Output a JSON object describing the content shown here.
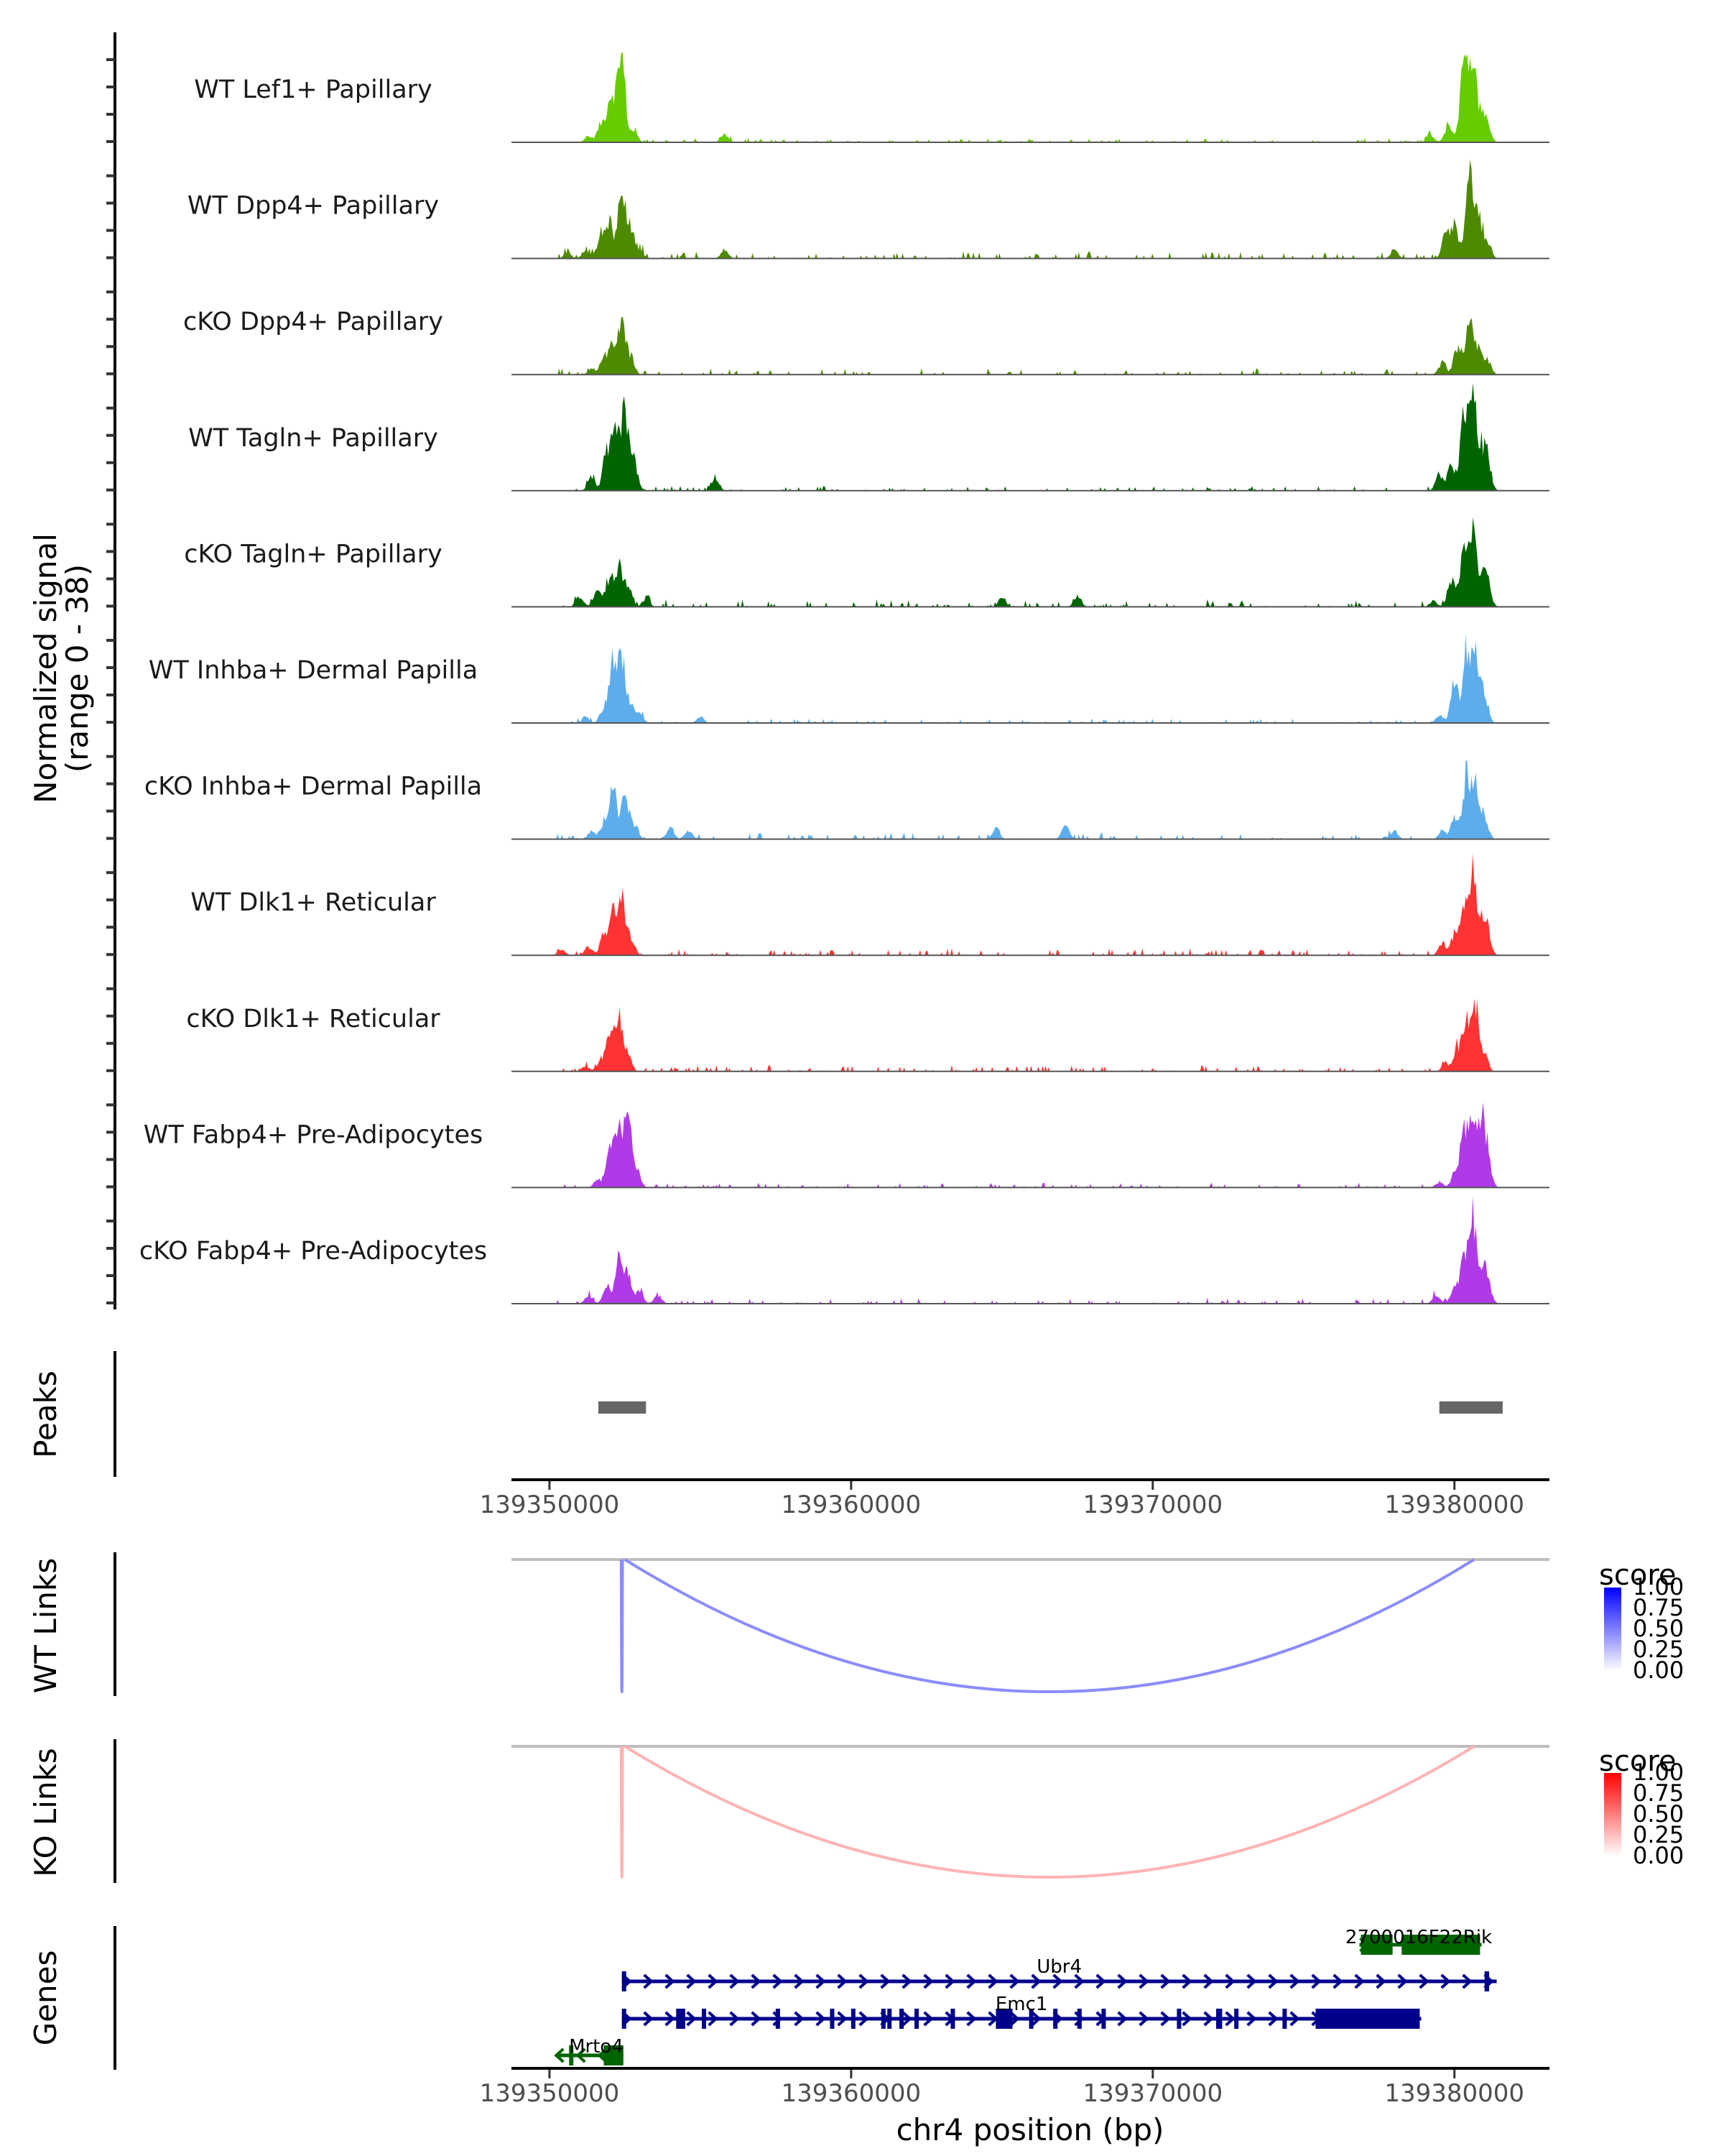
{
  "chart_data": {
    "type": "area",
    "title": "",
    "region": {
      "chrom": "chr4",
      "start": 139348740,
      "end": 139383150
    },
    "xlabel": "chr4 position (bp)",
    "x_ticks": [
      139350000,
      139360000,
      139370000,
      139380000
    ],
    "x_tick_labels": [
      "139350000",
      "139360000",
      "139370000",
      "139380000"
    ],
    "coverage": {
      "ylabel_line1": "Normalized signal",
      "ylabel_line2": "(range 0 - 38)",
      "ylim": [
        0,
        38
      ],
      "tracks": [
        {
          "name": "WT Lef1+ Papillary",
          "color": "#66CC00",
          "peaks": [
            [
              139351300,
              2
            ],
            [
              139351700,
              6
            ],
            [
              139352000,
              14
            ],
            [
              139352200,
              9
            ],
            [
              139352400,
              28
            ],
            [
              139352800,
              4
            ],
            [
              139355800,
              3
            ],
            [
              139379200,
              3
            ],
            [
              139379800,
              6
            ],
            [
              139380300,
              24
            ],
            [
              139380600,
              32
            ],
            [
              139380900,
              8
            ],
            [
              139381100,
              5
            ]
          ],
          "noise": 0.6
        },
        {
          "name": "WT Dpp4+ Papillary",
          "color": "#4E8A00",
          "peaks": [
            [
              139350600,
              2
            ],
            [
              139351200,
              3
            ],
            [
              139351700,
              8
            ],
            [
              139352000,
              12
            ],
            [
              139352400,
              24
            ],
            [
              139352700,
              10
            ],
            [
              139353000,
              3
            ],
            [
              139355800,
              3
            ],
            [
              139378000,
              3
            ],
            [
              139379700,
              8
            ],
            [
              139380000,
              12
            ],
            [
              139380500,
              34
            ],
            [
              139380800,
              14
            ],
            [
              139381100,
              6
            ]
          ],
          "noise": 1.0
        },
        {
          "name": "cKO Dpp4+ Papillary",
          "color": "#4E8A00",
          "peaks": [
            [
              139351400,
              2
            ],
            [
              139351800,
              6
            ],
            [
              139352100,
              10
            ],
            [
              139352400,
              18
            ],
            [
              139352700,
              6
            ],
            [
              139379600,
              4
            ],
            [
              139380100,
              10
            ],
            [
              139380500,
              22
            ],
            [
              139380800,
              9
            ],
            [
              139381100,
              5
            ]
          ],
          "noise": 0.9
        },
        {
          "name": "WT Tagln+ Papillary",
          "color": "#006400",
          "peaks": [
            [
              139351400,
              5
            ],
            [
              139351900,
              14
            ],
            [
              139352200,
              22
            ],
            [
              139352500,
              26
            ],
            [
              139352800,
              11
            ],
            [
              139355500,
              5
            ],
            [
              139379500,
              6
            ],
            [
              139379900,
              9
            ],
            [
              139380300,
              24
            ],
            [
              139380600,
              38
            ],
            [
              139380900,
              12
            ],
            [
              139381100,
              10
            ]
          ],
          "noise": 0.7
        },
        {
          "name": "cKO Tagln+ Papillary",
          "color": "#006400",
          "peaks": [
            [
              139351000,
              4
            ],
            [
              139351600,
              7
            ],
            [
              139352000,
              10
            ],
            [
              139352300,
              14
            ],
            [
              139352600,
              8
            ],
            [
              139353200,
              3
            ],
            [
              139365000,
              3
            ],
            [
              139367500,
              4
            ],
            [
              139379300,
              2
            ],
            [
              139379900,
              10
            ],
            [
              139380300,
              18
            ],
            [
              139380600,
              26
            ],
            [
              139380900,
              10
            ],
            [
              139381100,
              8
            ]
          ],
          "noise": 1.1
        },
        {
          "name": "WT Inhba+ Dermal Papilla",
          "color": "#5DADEC",
          "peaks": [
            [
              139351200,
              2
            ],
            [
              139351800,
              5
            ],
            [
              139352100,
              20
            ],
            [
              139352400,
              24
            ],
            [
              139352700,
              6
            ],
            [
              139353000,
              3
            ],
            [
              139355000,
              2
            ],
            [
              139379500,
              3
            ],
            [
              139380000,
              14
            ],
            [
              139380400,
              25
            ],
            [
              139380700,
              22
            ],
            [
              139381000,
              10
            ]
          ],
          "noise": 0.6
        },
        {
          "name": "cKO Inhba+ Dermal Papilla",
          "color": "#5DADEC",
          "peaks": [
            [
              139351400,
              3
            ],
            [
              139351800,
              5
            ],
            [
              139352100,
              18
            ],
            [
              139352500,
              15
            ],
            [
              139352800,
              5
            ],
            [
              139354000,
              4
            ],
            [
              139354600,
              3
            ],
            [
              139364800,
              4
            ],
            [
              139367100,
              5
            ],
            [
              139378000,
              3
            ],
            [
              139379600,
              3
            ],
            [
              139380000,
              7
            ],
            [
              139380400,
              22
            ],
            [
              139380700,
              18
            ],
            [
              139381000,
              8
            ]
          ],
          "noise": 0.9
        },
        {
          "name": "WT Dlk1+ Reticular",
          "color": "#FF3333",
          "peaks": [
            [
              139350400,
              2
            ],
            [
              139351300,
              3
            ],
            [
              139351800,
              7
            ],
            [
              139352100,
              14
            ],
            [
              139352400,
              20
            ],
            [
              139352700,
              6
            ],
            [
              139379600,
              4
            ],
            [
              139380000,
              7
            ],
            [
              139380300,
              17
            ],
            [
              139380600,
              28
            ],
            [
              139380900,
              10
            ],
            [
              139381100,
              8
            ]
          ],
          "noise": 1.0
        },
        {
          "name": "cKO Dlk1+ Reticular",
          "color": "#FF3333",
          "peaks": [
            [
              139351200,
              2
            ],
            [
              139351700,
              4
            ],
            [
              139352000,
              12
            ],
            [
              139352300,
              18
            ],
            [
              139352600,
              6
            ],
            [
              139379700,
              3
            ],
            [
              139380100,
              8
            ],
            [
              139380400,
              16
            ],
            [
              139380700,
              22
            ],
            [
              139381000,
              6
            ]
          ],
          "noise": 0.9
        },
        {
          "name": "WT Fabp4+ Pre-Adipocytes",
          "color": "#B03AE8",
          "peaks": [
            [
              139351600,
              3
            ],
            [
              139352000,
              12
            ],
            [
              139352300,
              22
            ],
            [
              139352600,
              24
            ],
            [
              139352900,
              6
            ],
            [
              139379500,
              2
            ],
            [
              139380000,
              4
            ],
            [
              139380300,
              18
            ],
            [
              139380600,
              26
            ],
            [
              139380900,
              22
            ],
            [
              139381100,
              10
            ]
          ],
          "noise": 0.7
        },
        {
          "name": "cKO Fabp4+ Pre-Adipocytes",
          "color": "#B03AE8",
          "peaks": [
            [
              139351300,
              3
            ],
            [
              139351900,
              6
            ],
            [
              139352300,
              18
            ],
            [
              139352600,
              10
            ],
            [
              139353000,
              4
            ],
            [
              139353600,
              3
            ],
            [
              139379400,
              3
            ],
            [
              139380000,
              6
            ],
            [
              139380300,
              14
            ],
            [
              139380600,
              30
            ],
            [
              139380900,
              10
            ],
            [
              139381100,
              8
            ]
          ],
          "noise": 0.8
        }
      ]
    },
    "peaks_track": {
      "label": "Peaks",
      "color": "#666666",
      "regions": [
        [
          139351620,
          139353200
        ],
        [
          139379500,
          139381600
        ]
      ]
    },
    "links_tracks": [
      {
        "label": "WT Links",
        "legend_title": "score",
        "color_high": "#0000FF",
        "color_low": "#FFFFFF",
        "legend_ticks": [
          "1.00",
          "0.75",
          "0.50",
          "0.25",
          "0.00"
        ],
        "links": [
          {
            "start": 139352380,
            "end": 139352420,
            "score": 0.45
          },
          {
            "start": 139352500,
            "end": 139380650,
            "score": 0.45
          }
        ]
      },
      {
        "label": "KO Links",
        "legend_title": "score",
        "color_high": "#FF0000",
        "color_low": "#FFFFFF",
        "legend_ticks": [
          "1.00",
          "0.75",
          "0.50",
          "0.25",
          "0.00"
        ],
        "links": [
          {
            "start": 139352380,
            "end": 139352420,
            "score": 0.3
          },
          {
            "start": 139352500,
            "end": 139380650,
            "score": 0.3
          }
        ]
      }
    ],
    "genes_track": {
      "label": "Genes",
      "genes": [
        {
          "name": "2700016F22Rik",
          "strand": "+",
          "color": "#006400",
          "row": 0,
          "start": 139376850,
          "end": 139380900,
          "exons": [
            [
              139376900,
              139377950
            ],
            [
              139378250,
              139380850
            ]
          ]
        },
        {
          "name": "Ubr4",
          "strand": "+",
          "color": "#00008B",
          "row": 1,
          "start": 139352400,
          "end": 139381400,
          "exons": [
            [
              139352400,
              139352480
            ],
            [
              139381000,
              139381150
            ]
          ]
        },
        {
          "name": "Emc1",
          "strand": "+",
          "color": "#00008B",
          "row": 2,
          "start": 139352400,
          "end": 139378900,
          "exons": [
            [
              139352400,
              139352470
            ],
            [
              139354200,
              139354500
            ],
            [
              139355050,
              139355150
            ],
            [
              139357500,
              139357580
            ],
            [
              139359300,
              139359380
            ],
            [
              139360000,
              139360120
            ],
            [
              139361000,
              139361080
            ],
            [
              139361200,
              139361280
            ],
            [
              139361600,
              139361700
            ],
            [
              139362100,
              139362180
            ],
            [
              139363300,
              139363380
            ],
            [
              139364800,
              139365350
            ],
            [
              139365900,
              139366000
            ],
            [
              139366700,
              139366780
            ],
            [
              139367500,
              139367580
            ],
            [
              139368300,
              139368380
            ],
            [
              139370800,
              139370900
            ],
            [
              139372100,
              139372300
            ],
            [
              139372700,
              139372800
            ],
            [
              139374300,
              139374380
            ],
            [
              139375400,
              139378850
            ]
          ]
        },
        {
          "name": "Mrto4",
          "strand": "-",
          "color": "#006400",
          "row": 3,
          "start": 139350200,
          "end": 139352450,
          "exons": [
            [
              139350650,
              139350700
            ],
            [
              139351800,
              139352450
            ]
          ]
        }
      ]
    }
  }
}
